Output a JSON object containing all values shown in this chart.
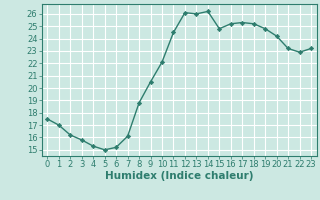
{
  "x": [
    0,
    1,
    2,
    3,
    4,
    5,
    6,
    7,
    8,
    9,
    10,
    11,
    12,
    13,
    14,
    15,
    16,
    17,
    18,
    19,
    20,
    21,
    22,
    23
  ],
  "y": [
    17.5,
    17.0,
    16.2,
    15.8,
    15.3,
    15.0,
    15.2,
    16.1,
    18.8,
    20.5,
    22.1,
    24.5,
    26.1,
    26.0,
    26.2,
    24.8,
    25.2,
    25.3,
    25.2,
    24.8,
    24.2,
    23.2,
    22.9,
    23.2
  ],
  "line_color": "#2e7d6e",
  "marker": "D",
  "marker_size": 2.2,
  "bg_color": "#cce8e2",
  "grid_color": "#ffffff",
  "xlabel": "Humidex (Indice chaleur)",
  "xlim": [
    -0.5,
    23.5
  ],
  "ylim": [
    14.5,
    26.8
  ],
  "yticks": [
    15,
    16,
    17,
    18,
    19,
    20,
    21,
    22,
    23,
    24,
    25,
    26
  ],
  "xticks": [
    0,
    1,
    2,
    3,
    4,
    5,
    6,
    7,
    8,
    9,
    10,
    11,
    12,
    13,
    14,
    15,
    16,
    17,
    18,
    19,
    20,
    21,
    22,
    23
  ],
  "axis_color": "#2e7d6e",
  "tick_color": "#2e7d6e",
  "label_fontsize": 7.5,
  "tick_fontsize": 6.0,
  "linewidth": 1.0
}
